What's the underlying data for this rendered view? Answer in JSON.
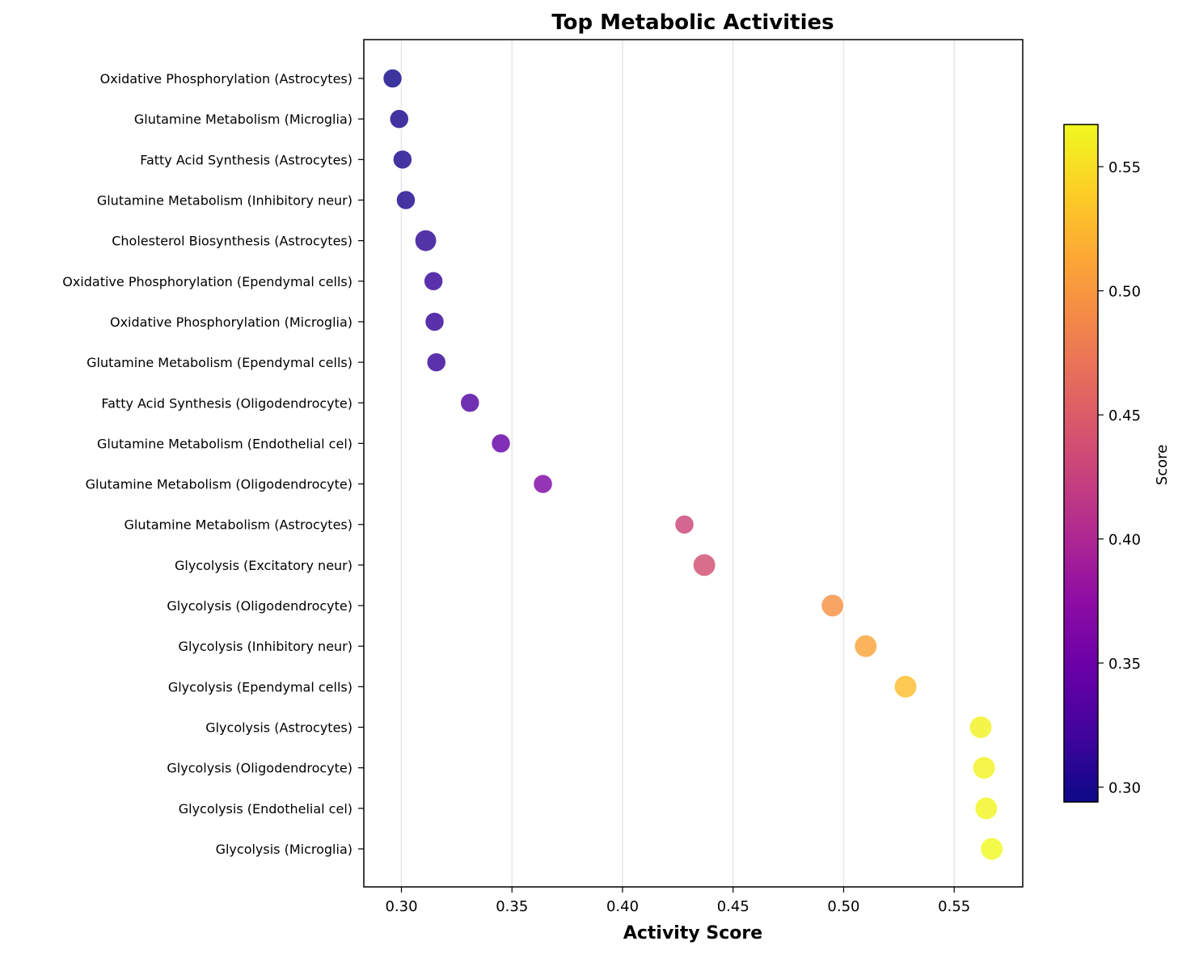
{
  "chart_data": {
    "type": "scatter",
    "title": "Top Metabolic Activities",
    "xlabel": "Activity Score",
    "xlim": [
      0.283,
      0.581
    ],
    "xticks": [
      "0.30",
      "0.35",
      "0.40",
      "0.45",
      "0.50",
      "0.55"
    ],
    "grid": "x-only",
    "colormap": "plasma",
    "colorbar": {
      "label": "Score",
      "range": [
        0.294,
        0.567
      ],
      "ticks": [
        "0.30",
        "0.35",
        "0.40",
        "0.45",
        "0.50",
        "0.55"
      ]
    },
    "categories": [
      "Oxidative Phosphorylation (Astrocytes)",
      "Glutamine Metabolism (Microglia)",
      "Fatty Acid Synthesis (Astrocytes)",
      "Glutamine Metabolism (Inhibitory neur)",
      "Cholesterol Biosynthesis (Astrocytes)",
      "Oxidative Phosphorylation (Ependymal cells)",
      "Oxidative Phosphorylation (Microglia)",
      "Glutamine Metabolism (Ependymal cells)",
      "Fatty Acid Synthesis (Oligodendrocyte)",
      "Glutamine Metabolism (Endothelial cel)",
      "Glutamine Metabolism (Oligodendrocyte)",
      "Glutamine Metabolism (Astrocytes)",
      "Glycolysis (Excitatory neur)",
      "Glycolysis (Oligodendrocyte)",
      "Glycolysis (Inhibitory neur)",
      "Glycolysis (Ependymal cells)",
      "Glycolysis (Astrocytes)",
      "Glycolysis (Oligodendrocyte)",
      "Glycolysis (Endothelial cel)",
      "Glycolysis (Microglia)"
    ],
    "values": [
      0.296,
      0.299,
      0.3005,
      0.302,
      0.311,
      0.3145,
      0.315,
      0.3158,
      0.331,
      0.345,
      0.364,
      0.428,
      0.437,
      0.495,
      0.51,
      0.528,
      0.562,
      0.5635,
      0.5645,
      0.567
    ],
    "marker_sizes": [
      1.0,
      1.0,
      1.0,
      1.0,
      1.3,
      1.0,
      1.0,
      1.0,
      1.0,
      1.0,
      1.0,
      1.0,
      1.4,
      1.4,
      1.4,
      1.4,
      1.4,
      1.4,
      1.4,
      1.4
    ]
  }
}
